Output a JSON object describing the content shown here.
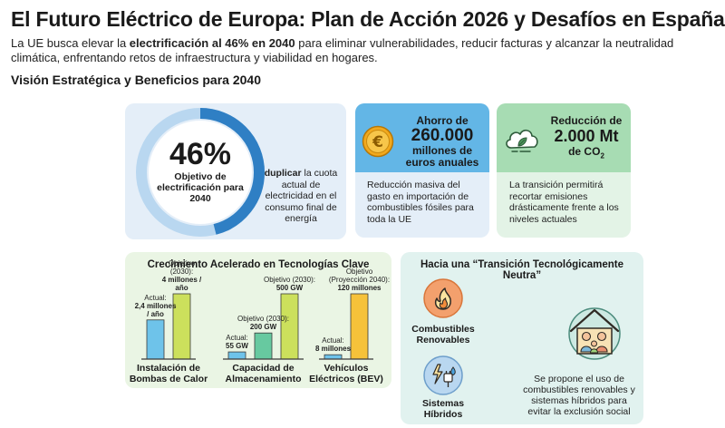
{
  "header": {
    "title": "El Futuro Eléctrico de Europa: Plan de Acción 2026 y Desafíos en España",
    "subtitle_pre": "La UE busca elevar la ",
    "subtitle_bold": "electrificación al 46% en 2040",
    "subtitle_post": " para eliminar vulnerabilidades, reducir facturas y alcanzar la neutralidad climática, enfrentando retos de infraestructura y viabilidad en hogares.",
    "section_title": "Visión Estratégica y Beneficios para 2040"
  },
  "electrification": {
    "big": "46%",
    "caption": "Objetivo de electrificación para 2040",
    "percent": 46,
    "double_bold": "duplicar",
    "double_rest": " la cuota actual de electricidad en el consumo final de energía"
  },
  "savings": {
    "line1": "Ahorro de",
    "line2": "260.000",
    "line3": "millones de euros anuales",
    "description": "Reducción masiva del gasto en importación de combustibles fósiles para toda la UE",
    "icon": "euro-coin-icon"
  },
  "co2": {
    "line1": "Reducción de",
    "line2": "2.000 Mt",
    "line3_pre": "de CO",
    "line3_sub": "2",
    "description": "La transición permitirá recortar emisiones drásticamente frente a los niveles actuales",
    "icon": "cloud-leaf-icon"
  },
  "chart_data": {
    "type": "bar",
    "title": "Crecimiento Acelerado en Tecnologías Clave",
    "groups": [
      {
        "name": "Instalación de Bombas de Calor",
        "unit": "millones / año",
        "bars": [
          {
            "label_top": "Actual:",
            "label_value": "2,4 millones / año",
            "value": 2.4,
            "color": "#6ec3ea"
          },
          {
            "label_top": "Objetivo (2030):",
            "label_value": "4 millones / año",
            "value": 4,
            "color": "#cce05c"
          }
        ]
      },
      {
        "name": "Capacidad de Almacenamiento",
        "unit": "GW",
        "bars": [
          {
            "label_top": "Actual:",
            "label_value": "55 GW",
            "value": 55,
            "color": "#6ec3ea"
          },
          {
            "label_top": "Objetivo (2030):",
            "label_value": "200 GW",
            "value": 200,
            "color": "#67c9a0"
          },
          {
            "label_top": "Objetivo (2030):",
            "label_value": "500 GW",
            "value": 500,
            "color": "#cce05c"
          }
        ]
      },
      {
        "name": "Vehículos Eléctricos (BEV)",
        "unit": "millones",
        "bars": [
          {
            "label_top": "Actual:",
            "label_value": "8 millones",
            "value": 8,
            "color": "#6ec3ea"
          },
          {
            "label_top": "Objetivo (Proyección 2040):",
            "label_value": "120 millones",
            "value": 120,
            "color": "#f6c23a"
          }
        ]
      }
    ]
  },
  "neutral": {
    "title": "Hacia una “Transición Tecnológicamente Neutra”",
    "fuel_label": "Combustibles Renovables",
    "hybrid_label": "Sistemas Híbridos",
    "description": "Se propone el uso de combustibles renovables y sistemas híbridos para evitar la exclusión social",
    "fuel_icon": "renewable-fuel-flame-icon",
    "hybrid_icon": "hybrid-system-icon",
    "home_icon": "family-home-icon"
  },
  "colors": {
    "blue_dark": "#2f7fc4",
    "blue_light": "#b9d7f0",
    "savings_head": "#63b6e6",
    "co2_head": "#a7dcb3"
  }
}
